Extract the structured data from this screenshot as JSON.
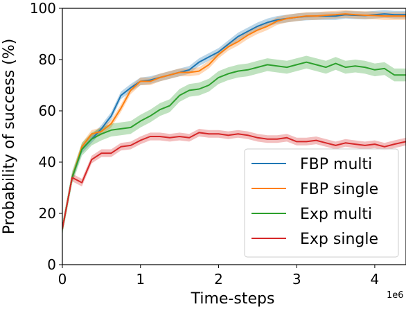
{
  "chart_data": {
    "type": "line",
    "xlabel": "Time-steps",
    "ylabel": "Probability of success (%)",
    "x_offset_label": "1e6",
    "xlim": [
      0,
      4.4
    ],
    "ylim": [
      0,
      100
    ],
    "x_ticks": [
      0,
      1,
      2,
      3,
      4
    ],
    "y_ticks": [
      0,
      20,
      40,
      60,
      80,
      100
    ],
    "grid": false,
    "legend_position": "lower-right",
    "x": [
      0,
      0.125,
      0.25,
      0.375,
      0.5,
      0.625,
      0.75,
      0.875,
      1,
      1.125,
      1.25,
      1.375,
      1.5,
      1.625,
      1.75,
      1.875,
      2,
      2.125,
      2.25,
      2.375,
      2.5,
      2.625,
      2.75,
      2.875,
      3,
      3.125,
      3.25,
      3.375,
      3.5,
      3.625,
      3.75,
      3.875,
      4,
      4.125,
      4.25,
      4.4
    ],
    "series": [
      {
        "name": "FBP multi",
        "color": "#1f77b4",
        "values": [
          14,
          34,
          45,
          49,
          53,
          58,
          66,
          69,
          71.5,
          72,
          73,
          74,
          75,
          76,
          79,
          81,
          83,
          86,
          89,
          91,
          93,
          94.5,
          95.5,
          96,
          96.5,
          96.8,
          97,
          97,
          97,
          97.5,
          97.3,
          97.2,
          97.5,
          97.8,
          97.5,
          97.5
        ],
        "band": 1.5
      },
      {
        "name": "FBP single",
        "color": "#ff7f0e",
        "values": [
          14,
          34,
          46,
          51,
          52,
          55,
          61,
          68,
          71.5,
          71.5,
          73,
          74,
          75,
          75,
          75.5,
          78,
          82,
          85,
          87,
          89.5,
          91.5,
          93,
          95,
          96,
          96.5,
          97,
          97,
          97.3,
          97.5,
          97.8,
          97.5,
          97.3,
          97.2,
          97,
          97,
          97
        ],
        "band": 1.5
      },
      {
        "name": "Exp multi",
        "color": "#2ca02c",
        "values": [
          14,
          34,
          45,
          49,
          51,
          52.5,
          53,
          53.5,
          56,
          58,
          60.5,
          62,
          66,
          68,
          68.5,
          70,
          73,
          74.5,
          75.5,
          76,
          77,
          78,
          77.5,
          77,
          78,
          79,
          78,
          77,
          78.5,
          77,
          77.5,
          77,
          76,
          76.5,
          74,
          74
        ],
        "band": 2.5
      },
      {
        "name": "Exp single",
        "color": "#d62728",
        "values": [
          14,
          34,
          32,
          41,
          43.5,
          43.5,
          46,
          46.5,
          48.5,
          50,
          50,
          49.5,
          50,
          49.5,
          51.5,
          51,
          51,
          50.5,
          51,
          50.5,
          49.5,
          49,
          49,
          49.5,
          48,
          48,
          48.5,
          47.5,
          46.5,
          47.5,
          47,
          46.5,
          47,
          46,
          47,
          48
        ],
        "band": 1.5
      }
    ]
  }
}
